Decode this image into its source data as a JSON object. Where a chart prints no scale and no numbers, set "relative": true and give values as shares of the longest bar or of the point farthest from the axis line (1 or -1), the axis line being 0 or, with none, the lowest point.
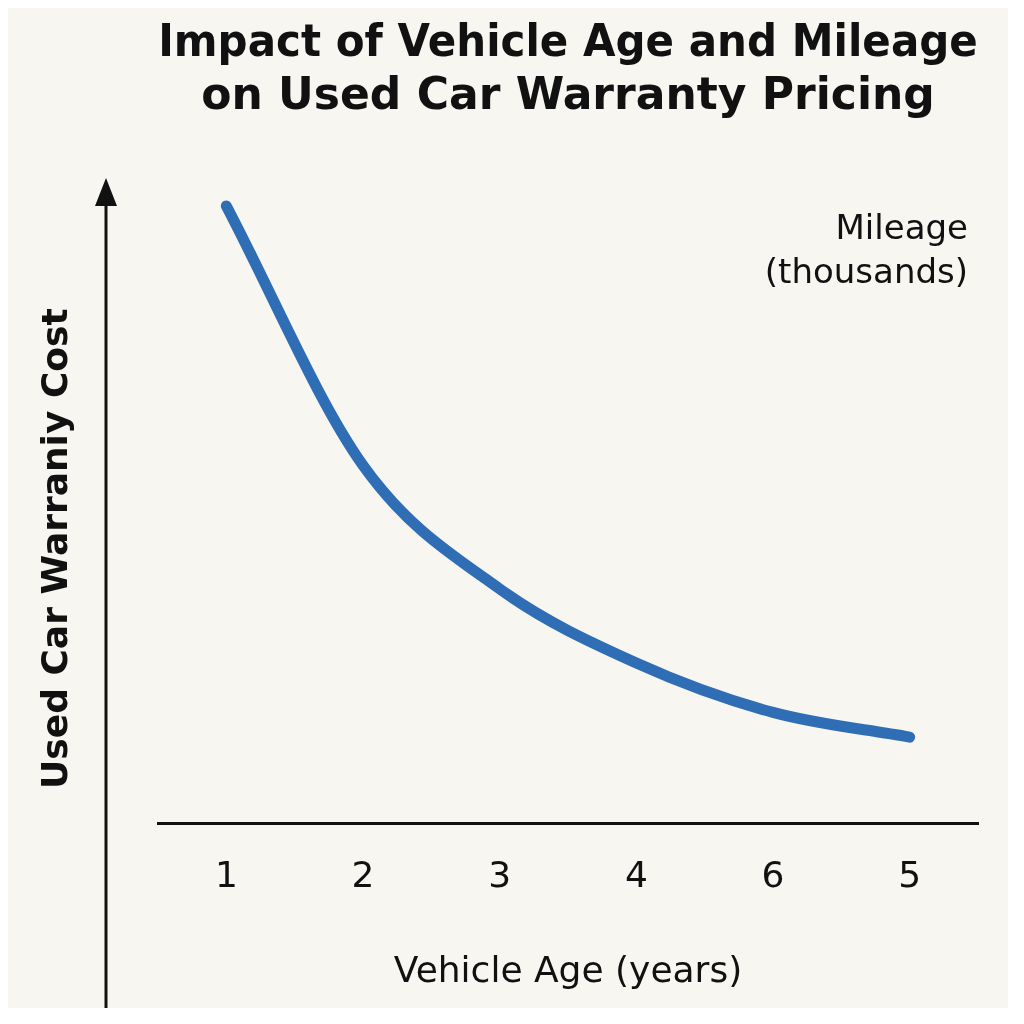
{
  "chart_data": {
    "type": "line",
    "title": "Impact of Vehicle Age and Mileage on Used Car Warranty Pricing",
    "xlabel": "Vehicle Age (years)",
    "ylabel": "Used Car Warraniy Cost",
    "categories": [
      "1",
      "2",
      "3",
      "4",
      "6",
      "5"
    ],
    "series": [
      {
        "color": "#2f6db5",
        "values": [
          1,
          0.58,
          0.38,
          0.26,
          0.18,
          0.14
        ]
      }
    ],
    "relative": true,
    "annotations": [
      "Mileage (thousands)"
    ],
    "grid": false,
    "legend": false,
    "marker": "none",
    "line_style": "solid"
  }
}
